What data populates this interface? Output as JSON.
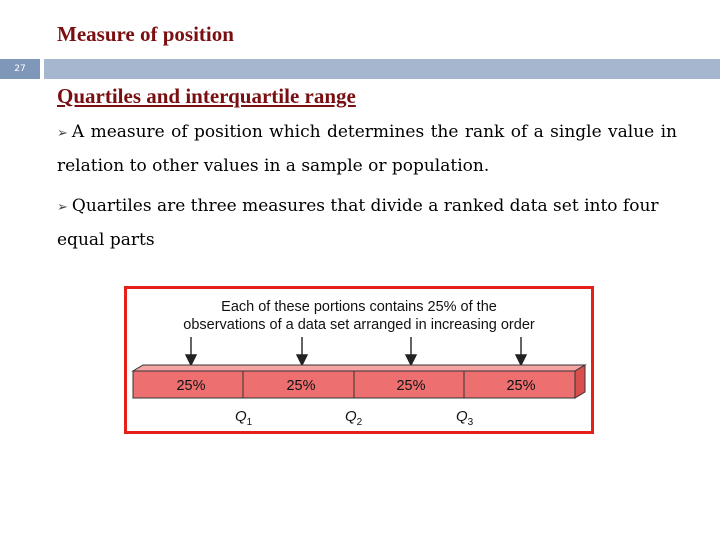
{
  "slide": {
    "title": "Measure of position",
    "number": "27"
  },
  "content": {
    "heading": "Quartiles and interquartile range",
    "bullets": [
      "A measure of position which determines the rank of a single value in relation to other values in a sample or population.",
      "Quartiles are three measures that divide a ranked data set into four equal parts"
    ]
  },
  "figure": {
    "caption_line1": "Each of these portions contains 25% of the",
    "caption_line2": "observations of a data set arranged in increasing order",
    "segments": [
      "25%",
      "25%",
      "25%",
      "25%"
    ],
    "quartiles": [
      {
        "letter": "Q",
        "sub": "1"
      },
      {
        "letter": "Q",
        "sub": "2"
      },
      {
        "letter": "Q",
        "sub": "3"
      }
    ],
    "colors": {
      "border": "#e32119",
      "bar_face": "#ee6f6f",
      "bar_top": "#f5a3a3",
      "bar_side": "#d94f4f"
    }
  }
}
